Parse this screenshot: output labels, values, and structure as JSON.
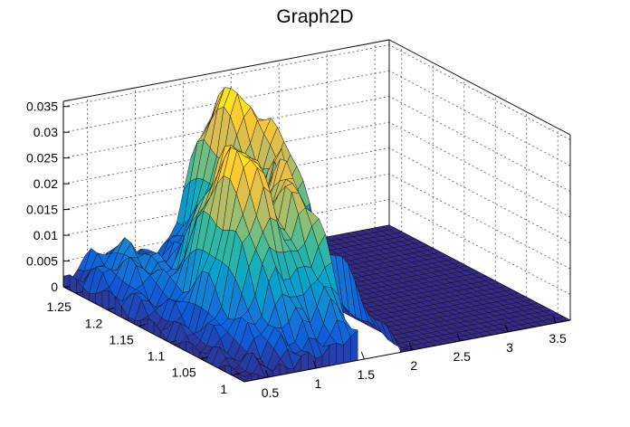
{
  "chart_data": {
    "type": "surface",
    "title": "Graph2D",
    "xlabel": "",
    "ylabel": "",
    "zlabel": "",
    "x_ticks": [
      "0.5",
      "1",
      "1.5",
      "2",
      "2.5",
      "3",
      "3.5"
    ],
    "y_ticks": [
      "1",
      "1.05",
      "1.1",
      "1.15",
      "1.2",
      "1.25"
    ],
    "z_ticks": [
      "0",
      "0.005",
      "0.01",
      "0.015",
      "0.02",
      "0.025",
      "0.03",
      "0.035"
    ],
    "xlim": [
      0.25,
      3.65
    ],
    "ylim": [
      0.98,
      1.27
    ],
    "zlim": [
      0,
      0.036
    ],
    "grid": true,
    "palette": [
      "#352a87",
      "#0f5cdd",
      "#1481d6",
      "#06a4ca",
      "#2eb7a4",
      "#87bf77",
      "#d1bb59",
      "#fec832",
      "#f9fb0e"
    ],
    "peaks": [
      {
        "x": 0.62,
        "y": 1.21,
        "z": 0.009
      },
      {
        "x": 1.0,
        "y": 1.1,
        "z": 0.036
      },
      {
        "x": 1.38,
        "y": 1.08,
        "z": 0.029
      },
      {
        "x": 1.55,
        "y": 1.1,
        "z": 0.033
      },
      {
        "x": 1.78,
        "y": 1.23,
        "z": 0.036
      },
      {
        "x": 1.92,
        "y": 1.18,
        "z": 0.032
      }
    ],
    "zero_region": {
      "x_from": 1.97,
      "x_to": 3.65,
      "z": 0
    },
    "missing_region": {
      "x_from": 1.45,
      "x_to": 1.9,
      "y_to": 1.13
    }
  }
}
